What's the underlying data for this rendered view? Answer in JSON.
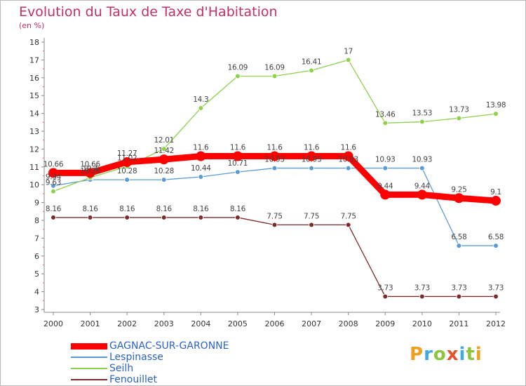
{
  "title": "Evolution du Taux de Taxe d'Habitation",
  "unit_label": "(en %)",
  "brand": {
    "letters": [
      "P",
      "r",
      "o",
      "x",
      "i",
      "t",
      "i"
    ],
    "colors": [
      "#f0a020",
      "#3fa9e0",
      "#8cc63f",
      "#e8502a",
      "#3fa9e0",
      "#8cc63f",
      "#f0a020"
    ]
  },
  "chart_data": {
    "type": "line",
    "title": "Evolution du Taux de Taxe d'Habitation",
    "ylabel": "(en %)",
    "xlabel": "",
    "x": [
      "2000",
      "2001",
      "2002",
      "2003",
      "2004",
      "2005",
      "2006",
      "2007",
      "2008",
      "2009",
      "2010",
      "2011",
      "2012"
    ],
    "ylim": [
      3,
      18
    ],
    "yticks": [
      "3",
      "4",
      "5",
      "6",
      "7",
      "8",
      "9",
      "10",
      "11",
      "12",
      "13",
      "14",
      "15",
      "16",
      "17",
      "18"
    ],
    "grid": false,
    "legend_position": "bottom-left",
    "series": [
      {
        "name": "GAGNAC-SUR-GARONNE",
        "color": "#ff0000",
        "values": [
          10.66,
          10.66,
          11.27,
          11.42,
          11.6,
          11.6,
          11.6,
          11.6,
          11.6,
          9.44,
          9.44,
          9.25,
          9.1
        ],
        "labels": [
          "10.66",
          "10.66",
          "11.27",
          "11.42",
          "11.6",
          "11.6",
          "11.6",
          "11.6",
          "11.6",
          "9.44",
          "9.44",
          "9.25",
          "9.1"
        ]
      },
      {
        "name": "Lespinasse",
        "color": "#5b9bd5",
        "values": [
          9.94,
          10.28,
          10.28,
          10.28,
          10.44,
          10.71,
          10.93,
          10.93,
          10.93,
          10.93,
          10.93,
          6.58,
          6.58
        ],
        "labels": [
          "9.94",
          "10.28",
          "10.28",
          "10.28",
          "10.44",
          "10.71",
          "10.93",
          "10.93",
          "10.93",
          "10.93",
          "10.93",
          "6.58",
          "6.58"
        ]
      },
      {
        "name": "Seilh",
        "color": "#8ed14b",
        "values": [
          9.63,
          10.4,
          11.02,
          12.01,
          14.3,
          16.09,
          16.09,
          16.41,
          17,
          13.46,
          13.53,
          13.73,
          13.98
        ],
        "labels": [
          "9.63",
          "10.4",
          "11.02",
          "12.01",
          "14.3",
          "16.09",
          "16.09",
          "16.41",
          "17",
          "13.46",
          "13.53",
          "13.73",
          "13.98"
        ]
      },
      {
        "name": "Fenouillet",
        "color": "#7b2b2b",
        "values": [
          8.16,
          8.16,
          8.16,
          8.16,
          8.16,
          8.16,
          7.75,
          7.75,
          7.75,
          3.73,
          3.73,
          3.73,
          3.73
        ],
        "labels": [
          "8.16",
          "8.16",
          "8.16",
          "8.16",
          "8.16",
          "8.16",
          "7.75",
          "7.75",
          "7.75",
          "3.73",
          "3.73",
          "3.73",
          "3.73"
        ]
      }
    ]
  }
}
